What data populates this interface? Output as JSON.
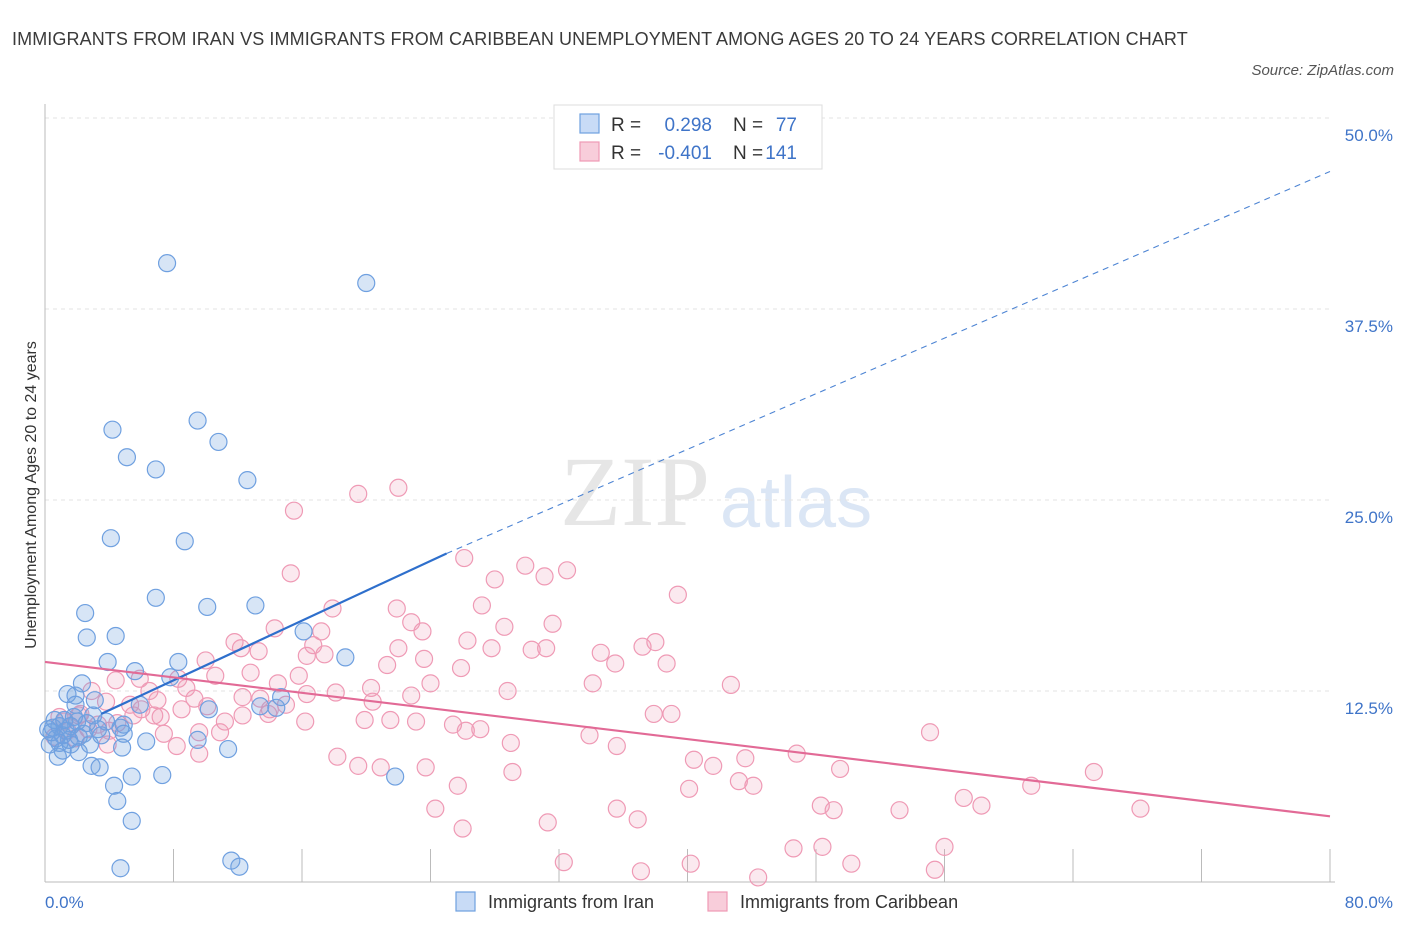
{
  "title": "IMMIGRANTS FROM IRAN VS IMMIGRANTS FROM CARIBBEAN UNEMPLOYMENT AMONG AGES 20 TO 24 YEARS CORRELATION CHART",
  "source": "Source: ZipAtlas.com",
  "watermark": {
    "zip": "ZIP",
    "atlas": "atlas"
  },
  "legend": {
    "r_label": "R =",
    "n_label": "N =",
    "rows": [
      {
        "r": "0.298",
        "n": "77"
      },
      {
        "r": "-0.401",
        "n": "141"
      }
    ]
  },
  "chart_data": {
    "type": "scatter",
    "title": "IMMIGRANTS FROM IRAN VS IMMIGRANTS FROM CARIBBEAN UNEMPLOYMENT AMONG AGES 20 TO 24 YEARS CORRELATION CHART",
    "xlabel": "",
    "ylabel": "Unemployment Among Ages 20 to 24 years",
    "xlim": [
      0,
      80
    ],
    "ylim": [
      0,
      50
    ],
    "x_tick_labels": [
      "0.0%",
      "80.0%"
    ],
    "y_ticks": [
      12.5,
      25.0,
      37.5,
      50.0
    ],
    "y_tick_labels": [
      "12.5%",
      "25.0%",
      "37.5%",
      "50.0%"
    ],
    "grid": true,
    "legend_position": "top-center",
    "colors": {
      "iran": "#6fa0e0",
      "caribbean": "#ef9ab5",
      "iran_line": "#2e6fcc",
      "caribbean_line": "#e26a96",
      "axis_text": "#3f74c8"
    },
    "series": [
      {
        "name": "Immigrants from Iran",
        "r": 0.298,
        "n": 77,
        "trend": {
          "solid": [
            [
              3.5,
              11.0
            ],
            [
              25.0,
              21.5
            ]
          ],
          "dashed": [
            [
              25.0,
              21.5
            ],
            [
              80.0,
              46.5
            ]
          ]
        },
        "points": [
          [
            7.6,
            40.5
          ],
          [
            20.0,
            39.2
          ],
          [
            9.5,
            30.2
          ],
          [
            4.2,
            29.6
          ],
          [
            10.8,
            28.8
          ],
          [
            5.1,
            27.8
          ],
          [
            6.9,
            27.0
          ],
          [
            12.6,
            26.3
          ],
          [
            4.1,
            22.5
          ],
          [
            8.7,
            22.3
          ],
          [
            6.9,
            18.6
          ],
          [
            10.1,
            18.0
          ],
          [
            13.1,
            18.1
          ],
          [
            2.5,
            17.6
          ],
          [
            16.1,
            16.4
          ],
          [
            2.6,
            16.0
          ],
          [
            4.4,
            16.1
          ],
          [
            18.7,
            14.7
          ],
          [
            3.9,
            14.4
          ],
          [
            8.3,
            14.4
          ],
          [
            5.6,
            13.8
          ],
          [
            7.8,
            13.4
          ],
          [
            2.3,
            13.0
          ],
          [
            1.4,
            12.3
          ],
          [
            1.9,
            12.2
          ],
          [
            14.7,
            12.1
          ],
          [
            3.1,
            11.9
          ],
          [
            1.9,
            11.6
          ],
          [
            5.9,
            11.6
          ],
          [
            10.2,
            11.3
          ],
          [
            14.4,
            11.4
          ],
          [
            13.4,
            11.5
          ],
          [
            0.6,
            10.6
          ],
          [
            1.2,
            10.6
          ],
          [
            2.0,
            10.5
          ],
          [
            2.6,
            10.4
          ],
          [
            3.8,
            10.5
          ],
          [
            4.9,
            10.3
          ],
          [
            0.9,
            10.2
          ],
          [
            1.6,
            10.2
          ],
          [
            3.3,
            10.0
          ],
          [
            4.7,
            10.1
          ],
          [
            0.4,
            9.8
          ],
          [
            1.1,
            9.6
          ],
          [
            2.1,
            9.5
          ],
          [
            3.5,
            9.6
          ],
          [
            4.9,
            9.7
          ],
          [
            0.7,
            9.4
          ],
          [
            1.5,
            9.3
          ],
          [
            6.3,
            9.2
          ],
          [
            9.5,
            9.3
          ],
          [
            0.9,
            9.1
          ],
          [
            1.6,
            9.0
          ],
          [
            0.3,
            9.0
          ],
          [
            4.8,
            8.8
          ],
          [
            11.4,
            8.7
          ],
          [
            1.1,
            8.6
          ],
          [
            2.1,
            8.5
          ],
          [
            2.9,
            7.6
          ],
          [
            3.4,
            7.5
          ],
          [
            0.8,
            8.2
          ],
          [
            7.3,
            7.0
          ],
          [
            5.4,
            6.9
          ],
          [
            21.8,
            6.9
          ],
          [
            4.3,
            6.3
          ],
          [
            4.5,
            5.3
          ],
          [
            5.4,
            4.0
          ],
          [
            11.6,
            1.4
          ],
          [
            12.1,
            1.0
          ],
          [
            4.7,
            0.9
          ],
          [
            1.3,
            9.9
          ],
          [
            0.5,
            10.1
          ],
          [
            2.4,
            9.7
          ],
          [
            3.0,
            10.9
          ],
          [
            1.8,
            10.8
          ],
          [
            0.2,
            10.0
          ],
          [
            2.8,
            9.0
          ]
        ]
      },
      {
        "name": "Immigrants from Caribbean",
        "r": -0.401,
        "n": 141,
        "trend": {
          "solid": [
            [
              0.0,
              14.4
            ],
            [
              80.0,
              4.3
            ]
          ]
        },
        "points": [
          [
            22.0,
            25.8
          ],
          [
            19.5,
            25.4
          ],
          [
            15.5,
            24.3
          ],
          [
            26.1,
            21.2
          ],
          [
            29.9,
            20.7
          ],
          [
            31.1,
            20.0
          ],
          [
            32.5,
            20.4
          ],
          [
            28.0,
            19.8
          ],
          [
            15.3,
            20.2
          ],
          [
            39.4,
            18.8
          ],
          [
            17.9,
            17.9
          ],
          [
            21.9,
            17.9
          ],
          [
            27.2,
            18.1
          ],
          [
            22.8,
            17.0
          ],
          [
            14.3,
            16.6
          ],
          [
            28.6,
            16.7
          ],
          [
            26.3,
            15.8
          ],
          [
            31.6,
            16.9
          ],
          [
            11.8,
            15.7
          ],
          [
            23.5,
            16.4
          ],
          [
            17.2,
            16.4
          ],
          [
            16.7,
            15.5
          ],
          [
            27.8,
            15.3
          ],
          [
            31.2,
            15.3
          ],
          [
            34.6,
            15.0
          ],
          [
            38.0,
            15.7
          ],
          [
            37.2,
            15.4
          ],
          [
            12.2,
            15.3
          ],
          [
            22.0,
            15.3
          ],
          [
            30.3,
            15.2
          ],
          [
            13.3,
            15.1
          ],
          [
            16.3,
            14.8
          ],
          [
            17.4,
            14.9
          ],
          [
            10.0,
            14.5
          ],
          [
            35.5,
            14.3
          ],
          [
            21.3,
            14.2
          ],
          [
            23.6,
            14.6
          ],
          [
            38.7,
            14.3
          ],
          [
            25.9,
            14.0
          ],
          [
            12.8,
            13.7
          ],
          [
            15.8,
            13.5
          ],
          [
            10.6,
            13.5
          ],
          [
            8.3,
            13.3
          ],
          [
            4.4,
            13.2
          ],
          [
            5.9,
            13.3
          ],
          [
            24.0,
            13.0
          ],
          [
            14.5,
            13.0
          ],
          [
            34.1,
            13.0
          ],
          [
            42.7,
            12.9
          ],
          [
            20.3,
            12.7
          ],
          [
            6.5,
            12.5
          ],
          [
            2.9,
            12.5
          ],
          [
            8.8,
            12.7
          ],
          [
            18.1,
            12.4
          ],
          [
            16.3,
            12.3
          ],
          [
            22.8,
            12.2
          ],
          [
            28.8,
            12.5
          ],
          [
            12.3,
            12.1
          ],
          [
            9.3,
            12.0
          ],
          [
            13.4,
            12.0
          ],
          [
            7.0,
            11.9
          ],
          [
            3.8,
            11.8
          ],
          [
            5.3,
            11.6
          ],
          [
            20.4,
            11.8
          ],
          [
            15.0,
            11.6
          ],
          [
            10.1,
            11.5
          ],
          [
            6.0,
            11.3
          ],
          [
            8.5,
            11.3
          ],
          [
            14.0,
            11.3
          ],
          [
            13.9,
            11.0
          ],
          [
            5.5,
            10.9
          ],
          [
            2.2,
            11.0
          ],
          [
            12.3,
            10.9
          ],
          [
            7.2,
            10.8
          ],
          [
            37.9,
            11.0
          ],
          [
            39.0,
            11.0
          ],
          [
            11.2,
            10.5
          ],
          [
            19.9,
            10.6
          ],
          [
            21.5,
            10.6
          ],
          [
            23.1,
            10.5
          ],
          [
            16.2,
            10.5
          ],
          [
            25.4,
            10.3
          ],
          [
            27.1,
            10.0
          ],
          [
            26.2,
            9.9
          ],
          [
            4.0,
            9.9
          ],
          [
            9.6,
            9.8
          ],
          [
            7.4,
            9.7
          ],
          [
            10.9,
            9.8
          ],
          [
            33.9,
            9.6
          ],
          [
            55.1,
            9.8
          ],
          [
            29.0,
            9.1
          ],
          [
            35.6,
            8.9
          ],
          [
            8.2,
            8.9
          ],
          [
            9.6,
            8.4
          ],
          [
            18.2,
            8.2
          ],
          [
            43.6,
            8.1
          ],
          [
            46.8,
            8.4
          ],
          [
            40.4,
            8.0
          ],
          [
            19.5,
            7.6
          ],
          [
            20.9,
            7.5
          ],
          [
            23.7,
            7.5
          ],
          [
            29.1,
            7.2
          ],
          [
            41.6,
            7.6
          ],
          [
            49.5,
            7.4
          ],
          [
            65.3,
            7.2
          ],
          [
            43.2,
            6.6
          ],
          [
            44.1,
            6.3
          ],
          [
            25.7,
            6.3
          ],
          [
            40.1,
            6.1
          ],
          [
            61.4,
            6.3
          ],
          [
            57.2,
            5.5
          ],
          [
            48.3,
            5.0
          ],
          [
            49.1,
            4.7
          ],
          [
            53.2,
            4.7
          ],
          [
            58.3,
            5.0
          ],
          [
            68.2,
            4.8
          ],
          [
            24.3,
            4.8
          ],
          [
            35.6,
            4.8
          ],
          [
            36.9,
            4.1
          ],
          [
            31.3,
            3.9
          ],
          [
            26.0,
            3.5
          ],
          [
            46.6,
            2.2
          ],
          [
            48.4,
            2.3
          ],
          [
            56.0,
            2.3
          ],
          [
            32.3,
            1.3
          ],
          [
            40.2,
            1.2
          ],
          [
            50.2,
            1.2
          ],
          [
            37.1,
            0.7
          ],
          [
            55.4,
            0.8
          ],
          [
            44.4,
            0.3
          ],
          [
            1.2,
            10.5
          ],
          [
            2.7,
            10.0
          ],
          [
            0.6,
            9.5
          ],
          [
            3.3,
            10.3
          ],
          [
            1.9,
            9.4
          ],
          [
            4.5,
            10.4
          ],
          [
            0.9,
            10.8
          ],
          [
            6.8,
            10.9
          ],
          [
            1.4,
            9.9
          ],
          [
            3.9,
            9.0
          ],
          [
            2.1,
            10.9
          ]
        ]
      }
    ]
  }
}
